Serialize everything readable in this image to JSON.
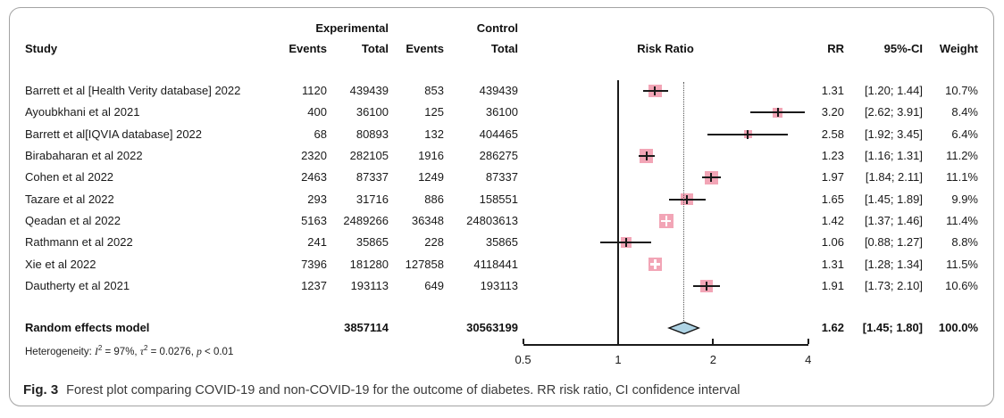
{
  "figure": {
    "caption_label": "Fig. 3",
    "caption_text": "Forest plot comparing COVID-19 and non-COVID-19 for the outcome of diabetes. RR risk ratio, CI confidence interval"
  },
  "table": {
    "headers": {
      "study": "Study",
      "experimental_group": "Experimental",
      "control_group": "Control",
      "exp_events": "Events",
      "exp_total": "Total",
      "ctrl_events": "Events",
      "ctrl_total": "Total",
      "risk_ratio": "Risk Ratio",
      "rr": "RR",
      "ci": "95%-CI",
      "weight": "Weight"
    }
  },
  "colors": {
    "square": "#f2a5b6",
    "diamond": "#aed3e4",
    "line": "#1a1a1a",
    "dotted": "#555555"
  },
  "chart_data": {
    "type": "forest",
    "title": "Risk Ratio",
    "x_axis": {
      "scale": "log2",
      "ticks": [
        0.5,
        1,
        2,
        4
      ],
      "tick_labels": [
        "0.5",
        "1",
        "2",
        "4"
      ],
      "range": [
        0.5,
        4
      ]
    },
    "reference_line": 1,
    "rows": [
      {
        "study": "Barrett et al [Health Verity database] 2022",
        "exp_events": "1120",
        "exp_total": "439439",
        "ctrl_events": "853",
        "ctrl_total": "439439",
        "rr": 1.31,
        "ci_low": 1.2,
        "ci_high": 1.44,
        "rr_label": "1.31",
        "ci_label": "[1.20; 1.44]",
        "weight": 10.7,
        "weight_label": "10.7%"
      },
      {
        "study": "Ayoubkhani et al  2021",
        "exp_events": "400",
        "exp_total": "36100",
        "ctrl_events": "125",
        "ctrl_total": "36100",
        "rr": 3.2,
        "ci_low": 2.62,
        "ci_high": 3.91,
        "rr_label": "3.20",
        "ci_label": "[2.62; 3.91]",
        "weight": 8.4,
        "weight_label": "8.4%"
      },
      {
        "study": "Barrett et al[IQVIA database] 2022",
        "exp_events": "68",
        "exp_total": "80893",
        "ctrl_events": "132",
        "ctrl_total": "404465",
        "rr": 2.58,
        "ci_low": 1.92,
        "ci_high": 3.45,
        "rr_label": "2.58",
        "ci_label": "[1.92; 3.45]",
        "weight": 6.4,
        "weight_label": "6.4%"
      },
      {
        "study": "Birabaharan et al 2022",
        "exp_events": "2320",
        "exp_total": "282105",
        "ctrl_events": "1916",
        "ctrl_total": "286275",
        "rr": 1.23,
        "ci_low": 1.16,
        "ci_high": 1.31,
        "rr_label": "1.23",
        "ci_label": "[1.16; 1.31]",
        "weight": 11.2,
        "weight_label": "11.2%"
      },
      {
        "study": "Cohen et al 2022",
        "exp_events": "2463",
        "exp_total": "87337",
        "ctrl_events": "1249",
        "ctrl_total": "87337",
        "rr": 1.97,
        "ci_low": 1.84,
        "ci_high": 2.11,
        "rr_label": "1.97",
        "ci_label": "[1.84; 2.11]",
        "weight": 11.1,
        "weight_label": "11.1%"
      },
      {
        "study": "Tazare et al 2022",
        "exp_events": "293",
        "exp_total": "31716",
        "ctrl_events": "886",
        "ctrl_total": "158551",
        "rr": 1.65,
        "ci_low": 1.45,
        "ci_high": 1.89,
        "rr_label": "1.65",
        "ci_label": "[1.45; 1.89]",
        "weight": 9.9,
        "weight_label": "9.9%"
      },
      {
        "study": "Qeadan et al 2022",
        "exp_events": "5163",
        "exp_total": "2489266",
        "ctrl_events": "36348",
        "ctrl_total": "24803613",
        "rr": 1.42,
        "ci_low": 1.37,
        "ci_high": 1.46,
        "rr_label": "1.42",
        "ci_label": "[1.37; 1.46]",
        "weight": 11.4,
        "weight_label": "11.4%"
      },
      {
        "study": "Rathmann et al 2022",
        "exp_events": "241",
        "exp_total": "35865",
        "ctrl_events": "228",
        "ctrl_total": "35865",
        "rr": 1.06,
        "ci_low": 0.88,
        "ci_high": 1.27,
        "rr_label": "1.06",
        "ci_label": "[0.88; 1.27]",
        "weight": 8.8,
        "weight_label": "8.8%"
      },
      {
        "study": "Xie et al 2022",
        "exp_events": "7396",
        "exp_total": "181280",
        "ctrl_events": "127858",
        "ctrl_total": "4118441",
        "rr": 1.31,
        "ci_low": 1.28,
        "ci_high": 1.34,
        "rr_label": "1.31",
        "ci_label": "[1.28; 1.34]",
        "weight": 11.5,
        "weight_label": "11.5%"
      },
      {
        "study": "Dautherty et al 2021",
        "exp_events": "1237",
        "exp_total": "193113",
        "ctrl_events": "649",
        "ctrl_total": "193113",
        "rr": 1.91,
        "ci_low": 1.73,
        "ci_high": 2.1,
        "rr_label": "1.91",
        "ci_label": "[1.73; 2.10]",
        "weight": 10.6,
        "weight_label": "10.6%"
      }
    ],
    "pooled": {
      "label": "Random effects model",
      "exp_total": "3857114",
      "ctrl_total": "30563199",
      "rr": 1.62,
      "ci_low": 1.45,
      "ci_high": 1.8,
      "rr_label": "1.62",
      "ci_label": "[1.45; 1.80]",
      "weight_label": "100.0%"
    },
    "heterogeneity": {
      "label": "Heterogeneity:",
      "i_sym": "I",
      "sup2": "2",
      "i_eq": "= 97%,",
      "tau_sym": "τ",
      "tau_eq": "= 0.0276,",
      "p_sym": "p",
      "p_eq": "< 0.01"
    }
  }
}
